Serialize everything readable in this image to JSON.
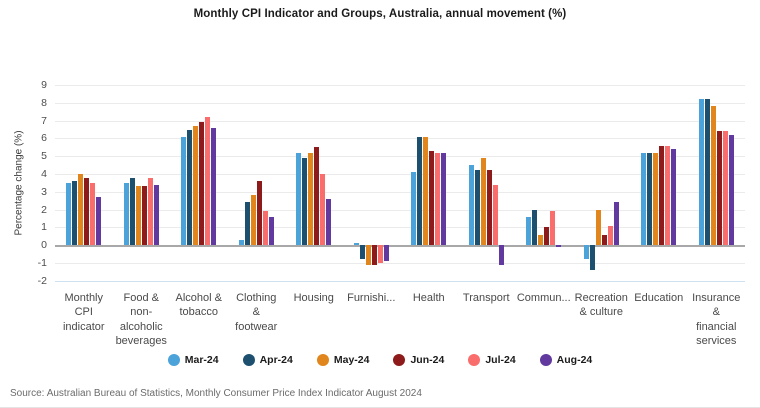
{
  "title": "Monthly CPI Indicator and Groups, Australia, annual movement (%)",
  "source": "Source: Australian Bureau of Statistics, Monthly Consumer Price Index Indicator August 2024",
  "chart_data": {
    "type": "bar",
    "title": "Monthly CPI Indicator and Groups, Australia, annual movement (%)",
    "xlabel": "",
    "ylabel": "Percentage change (%)",
    "ylim": [
      -2,
      9
    ],
    "ytick_step": 1,
    "grid": true,
    "legend_position": "bottom",
    "categories": [
      "Monthly\nCPI\nindicator",
      "Food &\nnon-\nalcoholic\nbeverages",
      "Alcohol &\ntobacco",
      "Clothing\n&\nfootwear",
      "Housing",
      "Furnishi...",
      "Health",
      "Transport",
      "Commun...",
      "Recreation\n& culture",
      "Education",
      "Insurance\n&\nfinancial\nservices"
    ],
    "series": [
      {
        "name": "Mar-24",
        "color": "#4CA3D9",
        "values": [
          3.5,
          3.5,
          6.1,
          0.3,
          5.2,
          0.1,
          4.1,
          4.5,
          1.6,
          -0.8,
          5.2,
          8.2
        ]
      },
      {
        "name": "Apr-24",
        "color": "#1D4F6E",
        "values": [
          3.6,
          3.8,
          6.5,
          2.4,
          4.9,
          -0.8,
          6.1,
          4.2,
          2.0,
          -1.4,
          5.2,
          8.2
        ]
      },
      {
        "name": "May-24",
        "color": "#E0861C",
        "values": [
          4.0,
          3.3,
          6.7,
          2.8,
          5.2,
          -1.1,
          6.1,
          4.9,
          0.6,
          2.0,
          5.2,
          7.8
        ]
      },
      {
        "name": "Jun-24",
        "color": "#8E1B1B",
        "values": [
          3.8,
          3.3,
          6.9,
          3.6,
          5.5,
          -1.1,
          5.3,
          4.2,
          1.0,
          0.6,
          5.6,
          6.4
        ]
      },
      {
        "name": "Jul-24",
        "color": "#FA6D6D",
        "values": [
          3.5,
          3.8,
          7.2,
          1.9,
          4.0,
          -1.0,
          5.2,
          3.4,
          1.9,
          1.1,
          5.6,
          6.4
        ]
      },
      {
        "name": "Aug-24",
        "color": "#61399F",
        "values": [
          2.7,
          3.4,
          6.6,
          1.6,
          2.6,
          -0.9,
          5.2,
          -1.1,
          -0.1,
          2.4,
          5.4,
          6.2
        ]
      }
    ]
  }
}
